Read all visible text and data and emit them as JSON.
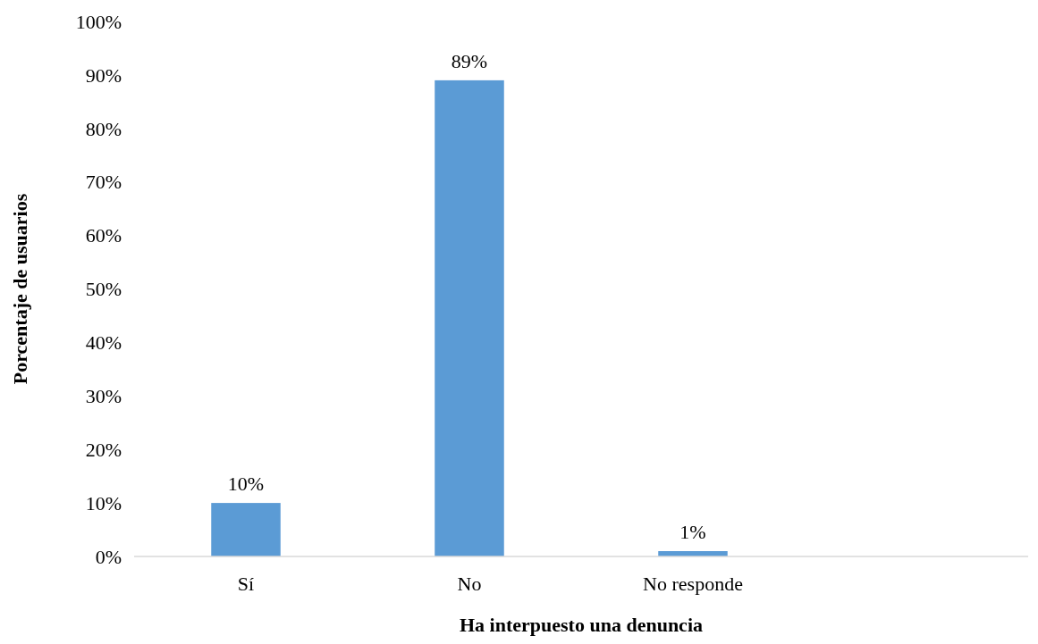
{
  "chart_data": {
    "type": "bar",
    "xlabel": "Ha interpuesto una denuncia",
    "ylabel": "Porcentaje de usuarios",
    "categories": [
      "Sí",
      "No",
      "No responde",
      null
    ],
    "values": [
      10,
      89,
      1,
      null
    ],
    "value_labels": [
      "10%",
      "89%",
      "1%",
      null
    ],
    "color": "#5b9bd5",
    "ylim": [
      0,
      100
    ],
    "yticks": [
      {
        "value": 0,
        "label": "0%"
      },
      {
        "value": 10,
        "label": "10%"
      },
      {
        "value": 20,
        "label": "20%"
      },
      {
        "value": 30,
        "label": "30%"
      },
      {
        "value": 40,
        "label": "40%"
      },
      {
        "value": 50,
        "label": "50%"
      },
      {
        "value": 60,
        "label": "60%"
      },
      {
        "value": 70,
        "label": "70%"
      },
      {
        "value": 80,
        "label": "80%"
      },
      {
        "value": 90,
        "label": "90%"
      },
      {
        "value": 100,
        "label": "100%"
      }
    ]
  }
}
